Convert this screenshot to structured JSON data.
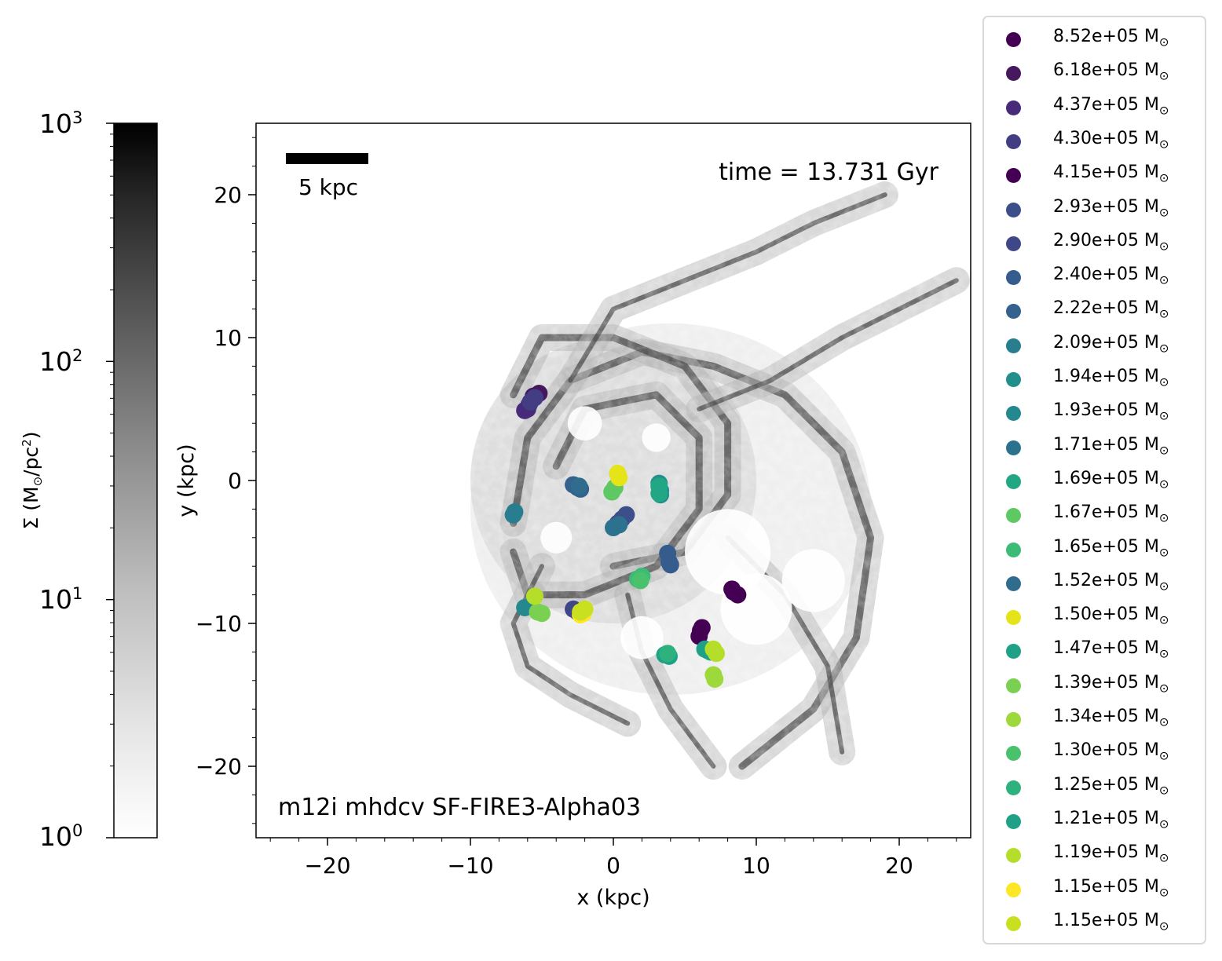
{
  "chart_data": {
    "type": "scatter",
    "background": "grayscale gas surface density projection of a spiral galaxy",
    "xlabel": "x (kpc)",
    "ylabel": "y (kpc)",
    "xlim": [
      -25,
      25
    ],
    "ylim": [
      -25,
      25
    ],
    "xticks": [
      -20,
      -10,
      0,
      10,
      20
    ],
    "xtick_labels": [
      "−20",
      "−10",
      "0",
      "10",
      "20"
    ],
    "yticks": [
      -20,
      -10,
      0,
      10,
      20
    ],
    "ytick_labels": [
      "−20",
      "−10",
      "0",
      "10",
      "20"
    ],
    "annotation_time": "time = 13.731 Gyr",
    "annotation_run": "m12i mhdcv SF-FIRE3-Alpha03",
    "scalebar": {
      "label": "5 kpc",
      "length_kpc": 5
    },
    "colorbar": {
      "label": "Σ (M⊙/pc²)",
      "label_parts": [
        "Σ (M",
        "⊙",
        "/pc",
        "2",
        ")"
      ],
      "scale": "log",
      "range": [
        1,
        1000
      ],
      "ticks": [
        {
          "base": "10",
          "exp": "0",
          "value": 1
        },
        {
          "base": "10",
          "exp": "1",
          "value": 10
        },
        {
          "base": "10",
          "exp": "2",
          "value": 100
        },
        {
          "base": "10",
          "exp": "3",
          "value": 1000
        }
      ],
      "colormap": "Greys"
    },
    "legend_placement": "outside right",
    "series": [
      {
        "name": "8.52e+05",
        "color": "#440154",
        "points": [
          [
            8.4,
            -7.8
          ],
          [
            8.7,
            -8.0
          ],
          [
            8.3,
            -7.6
          ]
        ]
      },
      {
        "name": "6.18e+05",
        "color": "#46195f",
        "points": [
          [
            -5.6,
            5.9
          ],
          [
            -5.2,
            6.1
          ]
        ]
      },
      {
        "name": "4.37e+05",
        "color": "#472a7a",
        "points": [
          [
            -6.2,
            4.9
          ],
          [
            -5.9,
            5.3
          ],
          [
            -6.0,
            5.0
          ]
        ]
      },
      {
        "name": "4.30e+05",
        "color": "#433d84",
        "points": [
          [
            -5.5,
            5.8
          ],
          [
            -5.8,
            5.5
          ]
        ]
      },
      {
        "name": "4.15e+05",
        "color": "#440154",
        "points": [
          [
            6.1,
            -10.5
          ],
          [
            6.0,
            -10.9
          ],
          [
            6.2,
            -10.3
          ]
        ]
      },
      {
        "name": "2.93e+05",
        "color": "#3c4f8a",
        "points": [
          [
            0.3,
            -3.0
          ],
          [
            0.6,
            -2.7
          ],
          [
            0.9,
            -2.4
          ]
        ]
      },
      {
        "name": "2.90e+05",
        "color": "#3f4788",
        "points": [
          [
            -2.8,
            -9.0
          ],
          [
            -2.5,
            -9.2
          ]
        ]
      },
      {
        "name": "2.40e+05",
        "color": "#365c8d",
        "points": [
          [
            3.8,
            -5.1
          ],
          [
            3.9,
            -5.7
          ],
          [
            4.0,
            -5.9
          ]
        ]
      },
      {
        "name": "2.22e+05",
        "color": "#34618d",
        "points": [
          [
            -2.8,
            -0.3
          ],
          [
            -2.5,
            -0.5
          ],
          [
            -2.3,
            -0.6
          ]
        ]
      },
      {
        "name": "2.09e+05",
        "color": "#287d8e",
        "points": [
          [
            -6.9,
            -2.2
          ],
          [
            -7.0,
            -2.4
          ]
        ]
      },
      {
        "name": "1.94e+05",
        "color": "#21908d",
        "points": [
          [
            3.2,
            -0.2
          ],
          [
            3.3,
            -0.7
          ],
          [
            3.3,
            -1.0
          ]
        ]
      },
      {
        "name": "1.93e+05",
        "color": "#23898e",
        "points": [
          [
            -6.2,
            -8.9
          ],
          [
            -5.8,
            -8.8
          ]
        ]
      },
      {
        "name": "1.71e+05",
        "color": "#2c728e",
        "points": [
          [
            0.0,
            -3.3
          ],
          [
            0.4,
            -3.1
          ]
        ]
      },
      {
        "name": "1.69e+05",
        "color": "#22a785",
        "points": [
          [
            3.2,
            -0.4
          ],
          [
            3.2,
            -0.9
          ]
        ]
      },
      {
        "name": "1.67e+05",
        "color": "#5ec962",
        "points": [
          [
            -0.1,
            -0.8
          ],
          [
            0.1,
            -0.5
          ]
        ]
      },
      {
        "name": "1.65e+05",
        "color": "#3bbb75",
        "points": [
          [
            1.7,
            -6.9
          ],
          [
            2.0,
            -6.7
          ]
        ]
      },
      {
        "name": "1.52e+05",
        "color": "#2f6c8e",
        "points": [
          [
            -2.4,
            -0.4
          ]
        ]
      },
      {
        "name": "1.50e+05",
        "color": "#e5e419",
        "points": [
          [
            0.3,
            0.5
          ],
          [
            0.4,
            0.2
          ]
        ]
      },
      {
        "name": "1.47e+05",
        "color": "#1fa187",
        "points": [
          [
            3.6,
            -12.2
          ],
          [
            3.9,
            -12.3
          ],
          [
            6.4,
            -11.8
          ]
        ]
      },
      {
        "name": "1.39e+05",
        "color": "#7ad151",
        "points": [
          [
            -5.0,
            -9.3
          ],
          [
            -5.3,
            -9.2
          ]
        ]
      },
      {
        "name": "1.34e+05",
        "color": "#9dd93b",
        "points": [
          [
            7.0,
            -13.6
          ],
          [
            7.1,
            -13.9
          ]
        ]
      },
      {
        "name": "1.30e+05",
        "color": "#4ac16d",
        "points": [
          [
            1.9,
            -7.0
          ]
        ]
      },
      {
        "name": "1.25e+05",
        "color": "#2db27d",
        "points": [
          [
            3.8,
            -12.1
          ]
        ]
      },
      {
        "name": "1.21e+05",
        "color": "#1fa187",
        "points": [
          [
            6.6,
            -11.9
          ],
          [
            6.8,
            -12.0
          ]
        ]
      },
      {
        "name": "1.19e+05",
        "color": "#b5de2b",
        "points": [
          [
            7.0,
            -11.8
          ],
          [
            7.2,
            -12.1
          ],
          [
            -5.5,
            -8.1
          ]
        ]
      },
      {
        "name": "1.15e+05",
        "color": "#fde725",
        "points": [
          [
            -2.3,
            -9.4
          ],
          [
            -2.1,
            -9.3
          ]
        ]
      },
      {
        "name": "1.15e+05",
        "color": "#c8e020",
        "points": [
          [
            -2.3,
            -9.2
          ],
          [
            -2.0,
            -9.0
          ]
        ]
      }
    ],
    "legend_unit_parts": [
      "M",
      "⊙"
    ]
  }
}
